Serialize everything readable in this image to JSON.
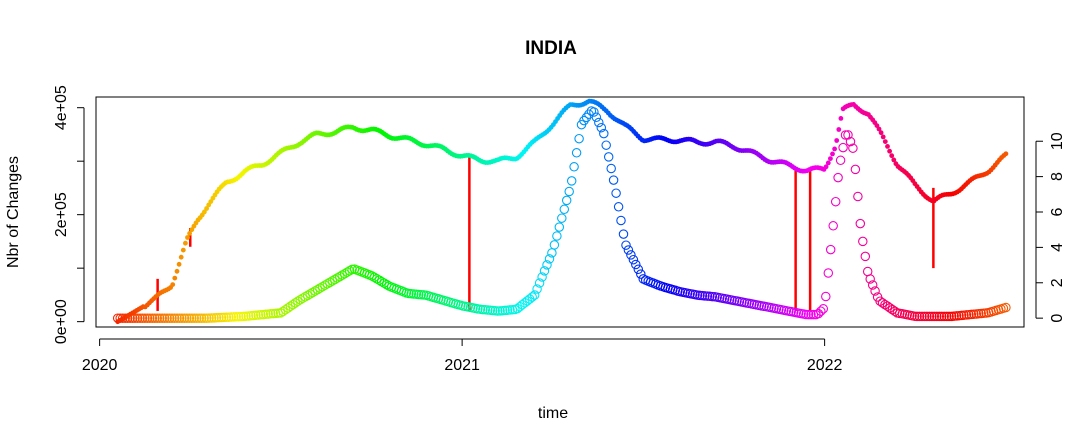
{
  "chart_data": {
    "type": "scatter",
    "title": "INDIA",
    "xlabel": "time",
    "ylabel": "Nbr of Changes",
    "xlim": [
      2019.99,
      2022.55
    ],
    "ylim_left": [
      -10000,
      420000
    ],
    "ylim_right": [
      -0.5,
      12.5
    ],
    "x_ticks": [
      2020,
      2021,
      2022
    ],
    "x_tick_labels": [
      "2020",
      "2021",
      "2022"
    ],
    "y_left_ticks": [
      0,
      100000,
      200000,
      300000,
      400000
    ],
    "y_left_tick_labels": [
      "0e+00",
      "2e+05",
      "4e+05"
    ],
    "y_left_label_values": [
      0,
      200000,
      400000
    ],
    "y_right_ticks": [
      0,
      2,
      4,
      6,
      8,
      10
    ],
    "y_right_tick_labels": [
      "0",
      "2",
      "4",
      "6",
      "8",
      "10"
    ],
    "grid": false,
    "legend": "none",
    "series": [
      {
        "marker": "filled-dot",
        "axis": "left",
        "x": [
          2020.05,
          2020.1,
          2020.15,
          2020.2,
          2020.24,
          2020.27,
          2020.3,
          2020.35,
          2020.4,
          2020.45,
          2020.5,
          2020.55,
          2020.6,
          2020.65,
          2020.7,
          2020.75,
          2020.8,
          2020.85,
          2020.9,
          2020.95,
          2021.0,
          2021.05,
          2021.1,
          2021.15,
          2021.2,
          2021.25,
          2021.3,
          2021.35,
          2021.4,
          2021.45,
          2021.5,
          2021.55,
          2021.6,
          2021.65,
          2021.7,
          2021.75,
          2021.8,
          2021.85,
          2021.9,
          2021.95,
          2022.0,
          2022.03,
          2022.05,
          2022.08,
          2022.12,
          2022.16,
          2022.2,
          2022.25,
          2022.3,
          2022.35,
          2022.4,
          2022.45,
          2022.5
        ],
        "y": [
          0,
          20000,
          40000,
          70000,
          150000,
          190000,
          220000,
          260000,
          280000,
          295000,
          315000,
          335000,
          350000,
          355000,
          363000,
          358000,
          348000,
          340000,
          332000,
          322000,
          310000,
          302000,
          300000,
          308000,
          335000,
          370000,
          405000,
          412000,
          395000,
          365000,
          342000,
          340000,
          340000,
          335000,
          336000,
          328000,
          315000,
          302000,
          292000,
          283000,
          285000,
          330000,
          395000,
          405000,
          390000,
          345000,
          295000,
          255000,
          225000,
          240000,
          260000,
          282000,
          310000
        ]
      },
      {
        "marker": "open-circle",
        "axis": "right",
        "x": [
          2020.05,
          2020.1,
          2020.2,
          2020.3,
          2020.4,
          2020.5,
          2020.55,
          2020.6,
          2020.65,
          2020.7,
          2020.75,
          2020.8,
          2020.85,
          2020.9,
          2020.95,
          2021.0,
          2021.05,
          2021.1,
          2021.15,
          2021.2,
          2021.25,
          2021.3,
          2021.33,
          2021.36,
          2021.39,
          2021.42,
          2021.45,
          2021.5,
          2021.55,
          2021.6,
          2021.65,
          2021.7,
          2021.75,
          2021.8,
          2021.85,
          2021.9,
          2021.95,
          2021.98,
          2022.0,
          2022.02,
          2022.04,
          2022.06,
          2022.08,
          2022.1,
          2022.12,
          2022.15,
          2022.2,
          2022.25,
          2022.3,
          2022.35,
          2022.4,
          2022.45,
          2022.5
        ],
        "y": [
          0,
          0,
          0,
          0,
          0.1,
          0.3,
          1.0,
          1.6,
          2.2,
          2.8,
          2.4,
          1.8,
          1.4,
          1.3,
          1.0,
          0.7,
          0.5,
          0.4,
          0.5,
          1.3,
          3.8,
          7.5,
          11.0,
          11.8,
          10.5,
          7.6,
          4.2,
          2.2,
          1.8,
          1.5,
          1.3,
          1.2,
          1.0,
          0.8,
          0.6,
          0.4,
          0.2,
          0.2,
          0.6,
          4.5,
          8.5,
          10.6,
          9.5,
          5.0,
          2.5,
          1.0,
          0.3,
          0.1,
          0.1,
          0.1,
          0.2,
          0.3,
          0.6
        ]
      }
    ],
    "vertical_segments": [
      {
        "x": 2020.16,
        "y1": 20000,
        "y2": 80000,
        "color": "#ff0000"
      },
      {
        "x": 2020.25,
        "y1": 140000,
        "y2": 175000,
        "color": "#ff0000"
      },
      {
        "x": 2021.02,
        "y1": 20000,
        "y2": 310000,
        "color": "#ff0000"
      },
      {
        "x": 2021.92,
        "y1": 20000,
        "y2": 288000,
        "color": "#ff0000"
      },
      {
        "x": 2021.96,
        "y1": 20000,
        "y2": 285000,
        "color": "#ff0000"
      },
      {
        "x": 2022.3,
        "y1": 100000,
        "y2": 250000,
        "color": "#ff0000"
      }
    ]
  }
}
